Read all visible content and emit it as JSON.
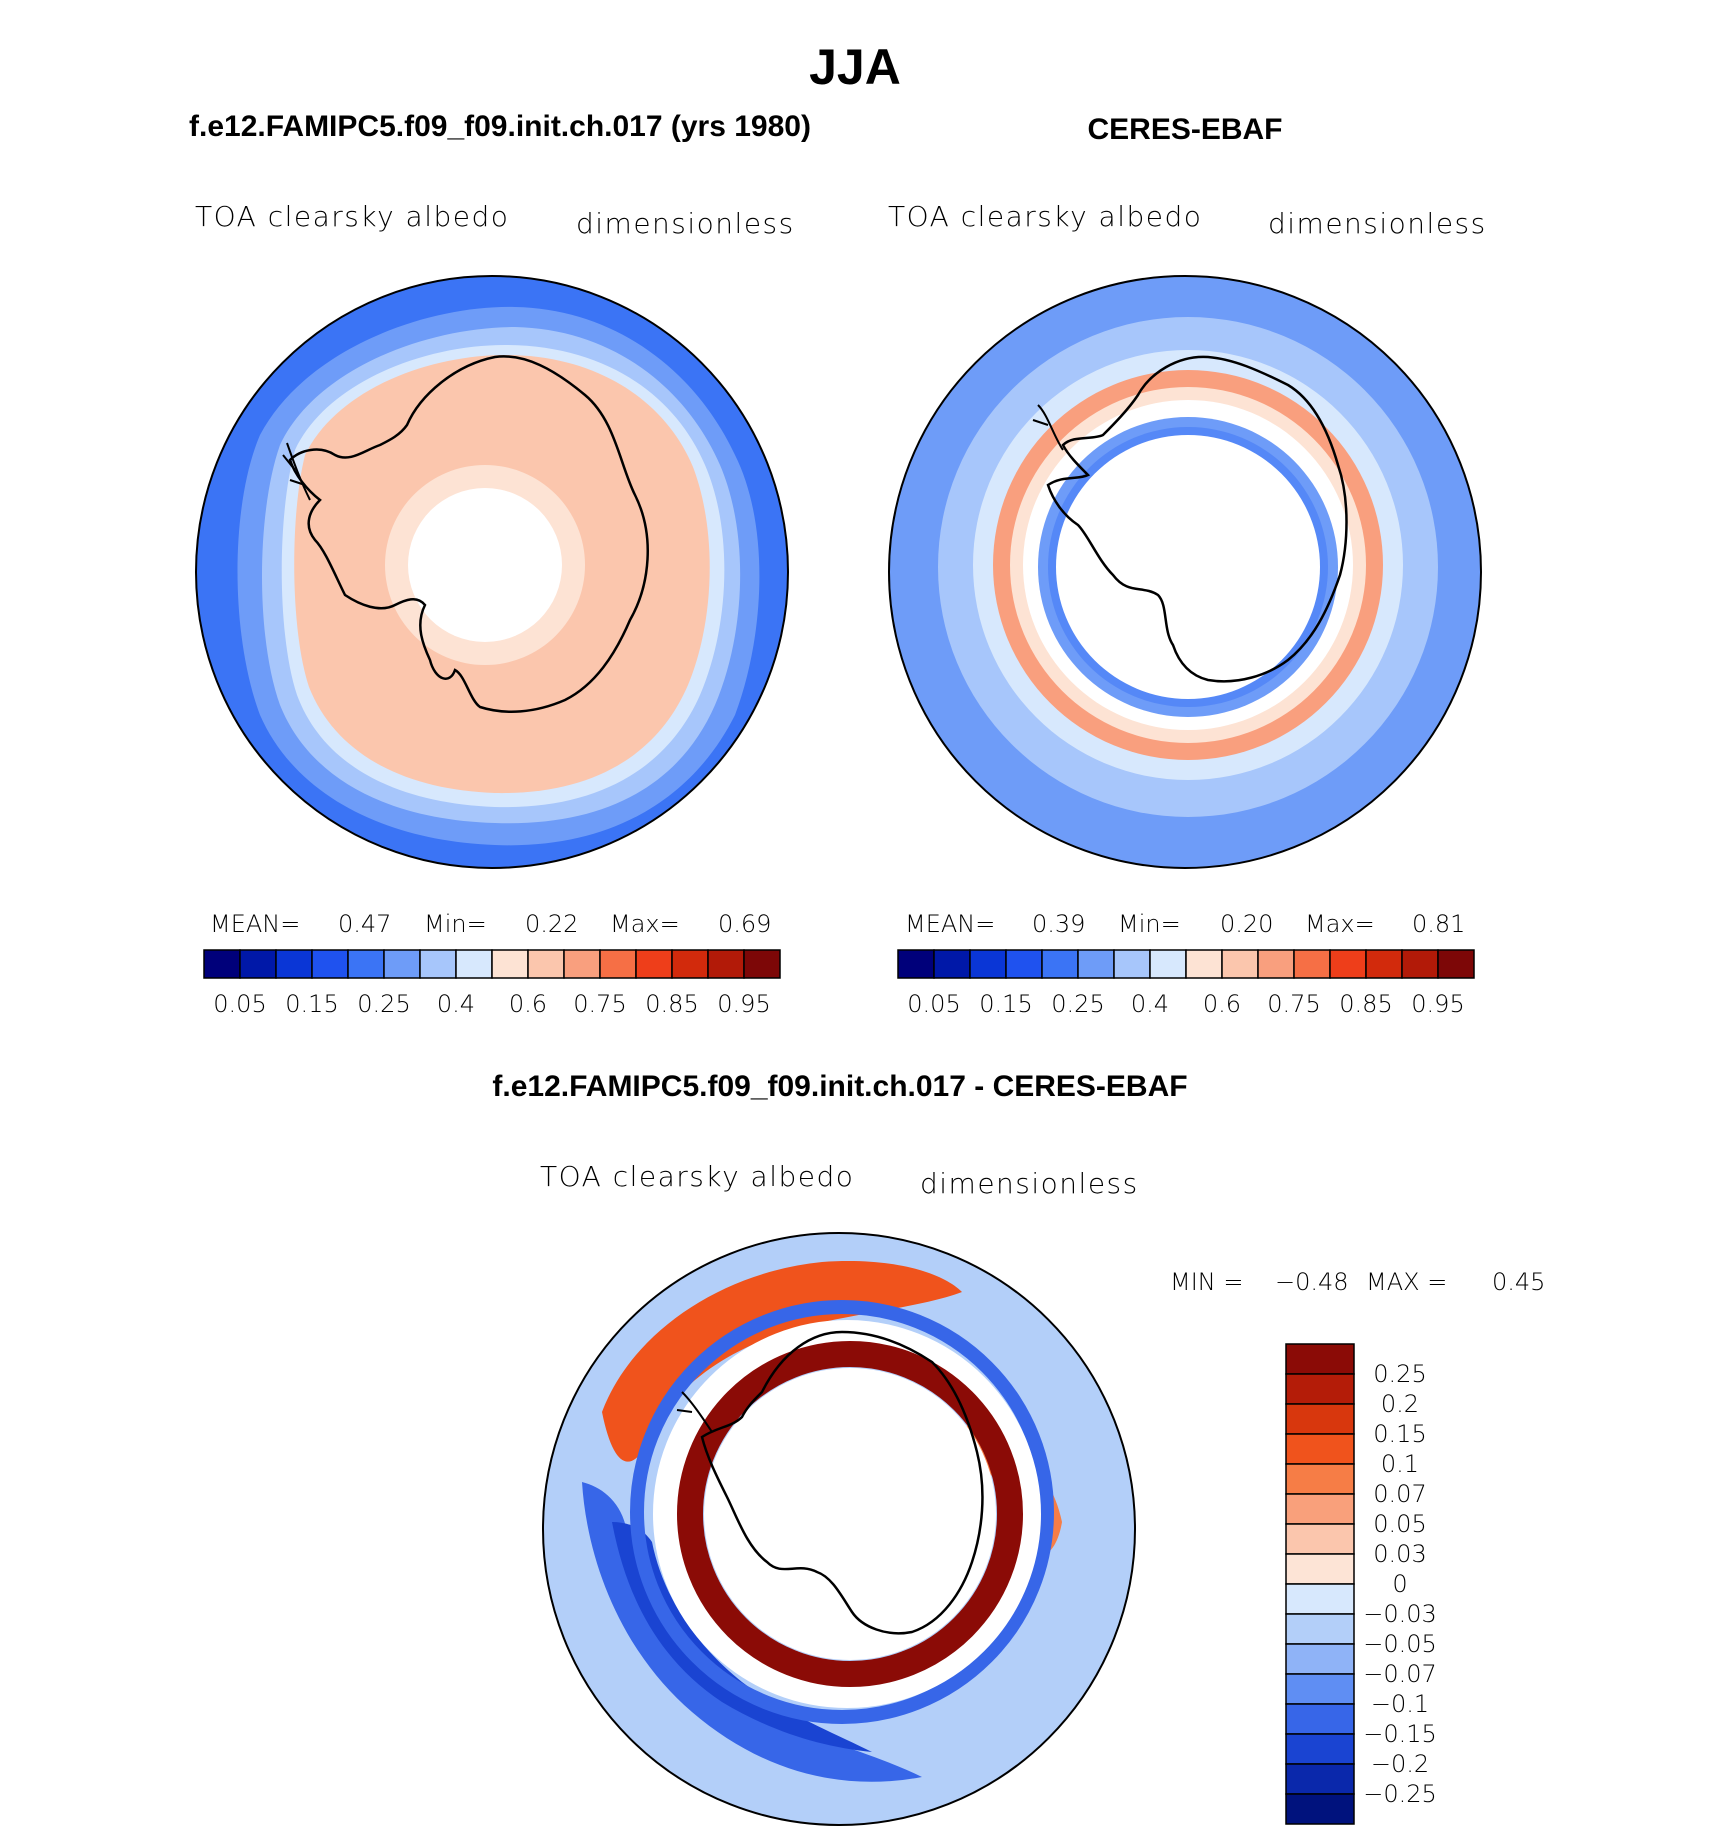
{
  "figure": {
    "season_title": "JJA",
    "diff_title": "f.e12.FAMIPC5.f09_f09.init.ch.017 - CERES-EBAF"
  },
  "colors": {
    "model_scale": [
      "#00007a",
      "#0018a8",
      "#0a36d6",
      "#1f52ef",
      "#3b74f5",
      "#6e9cf8",
      "#a7c6fb",
      "#d7e8fd",
      "#fde3d4",
      "#fbc6ad",
      "#f99f7e",
      "#f66f45",
      "#ee3e1a",
      "#d22a0c",
      "#b21a08",
      "#7d0707"
    ],
    "diff_scale": [
      "#8b0b06",
      "#b41c08",
      "#d8370d",
      "#f0531c",
      "#f67d46",
      "#f9a07b",
      "#fbc6ad",
      "#fde4d6",
      "#d7e8fd",
      "#b3cff9",
      "#8fb3f7",
      "#5f8ef3",
      "#3766e8",
      "#1a44d2",
      "#0a28ab",
      "#00127d"
    ]
  },
  "panels": [
    {
      "title": "f.e12.FAMIPC5.f09_f09.init.ch.017 (yrs 1980)",
      "variable": "TOA clearsky albedo",
      "units": "dimensionless",
      "mean_label": "MEAN=",
      "mean": "0.47",
      "min_label": "Min=",
      "min": "0.22",
      "max_label": "Max=",
      "max": "0.69",
      "colorbar_ticks": [
        "0.05",
        "0.15",
        "0.25",
        "0.4",
        "0.6",
        "0.75",
        "0.85",
        "0.95"
      ]
    },
    {
      "title": "CERES-EBAF",
      "variable": "TOA clearsky albedo",
      "units": "dimensionless",
      "mean_label": "MEAN=",
      "mean": "0.39",
      "min_label": "Min=",
      "min": "0.20",
      "max_label": "Max=",
      "max": "0.81",
      "colorbar_ticks": [
        "0.05",
        "0.15",
        "0.25",
        "0.4",
        "0.6",
        "0.75",
        "0.85",
        "0.95"
      ]
    },
    {
      "variable": "TOA clearsky albedo",
      "units": "dimensionless",
      "min_label": "MIN =",
      "min": "−0.48",
      "max_label": "MAX =",
      "max": "0.45",
      "colorbar_ticks": [
        "0.25",
        "0.2",
        "0.15",
        "0.1",
        "0.07",
        "0.05",
        "0.03",
        "0",
        "−0.03",
        "−0.05",
        "−0.07",
        "−0.1",
        "−0.15",
        "−0.2",
        "−0.25"
      ]
    }
  ],
  "chart_data": [
    {
      "type": "heatmap",
      "title": "f.e12.FAMIPC5.f09_f09.init.ch.017 (yrs 1980)",
      "variable": "TOA clearsky albedo",
      "units": "dimensionless",
      "projection": "south polar stereographic",
      "statistics": {
        "mean": 0.47,
        "min": 0.22,
        "max": 0.69
      },
      "contour_levels": [
        0.05,
        0.1,
        0.15,
        0.2,
        0.25,
        0.3,
        0.4,
        0.5,
        0.6,
        0.7,
        0.75,
        0.8,
        0.85,
        0.9,
        0.95
      ]
    },
    {
      "type": "heatmap",
      "title": "CERES-EBAF",
      "variable": "TOA clearsky albedo",
      "units": "dimensionless",
      "projection": "south polar stereographic",
      "statistics": {
        "mean": 0.39,
        "min": 0.2,
        "max": 0.81
      },
      "contour_levels": [
        0.05,
        0.1,
        0.15,
        0.2,
        0.25,
        0.3,
        0.4,
        0.5,
        0.6,
        0.7,
        0.75,
        0.8,
        0.85,
        0.9,
        0.95
      ]
    },
    {
      "type": "heatmap",
      "title": "f.e12.FAMIPC5.f09_f09.init.ch.017 - CERES-EBAF",
      "variable": "TOA clearsky albedo",
      "units": "dimensionless",
      "projection": "south polar stereographic",
      "statistics": {
        "min": -0.48,
        "max": 0.45
      },
      "contour_levels": [
        0.25,
        0.2,
        0.15,
        0.1,
        0.07,
        0.05,
        0.03,
        0,
        -0.03,
        -0.05,
        -0.07,
        -0.1,
        -0.15,
        -0.2,
        -0.25
      ]
    }
  ]
}
